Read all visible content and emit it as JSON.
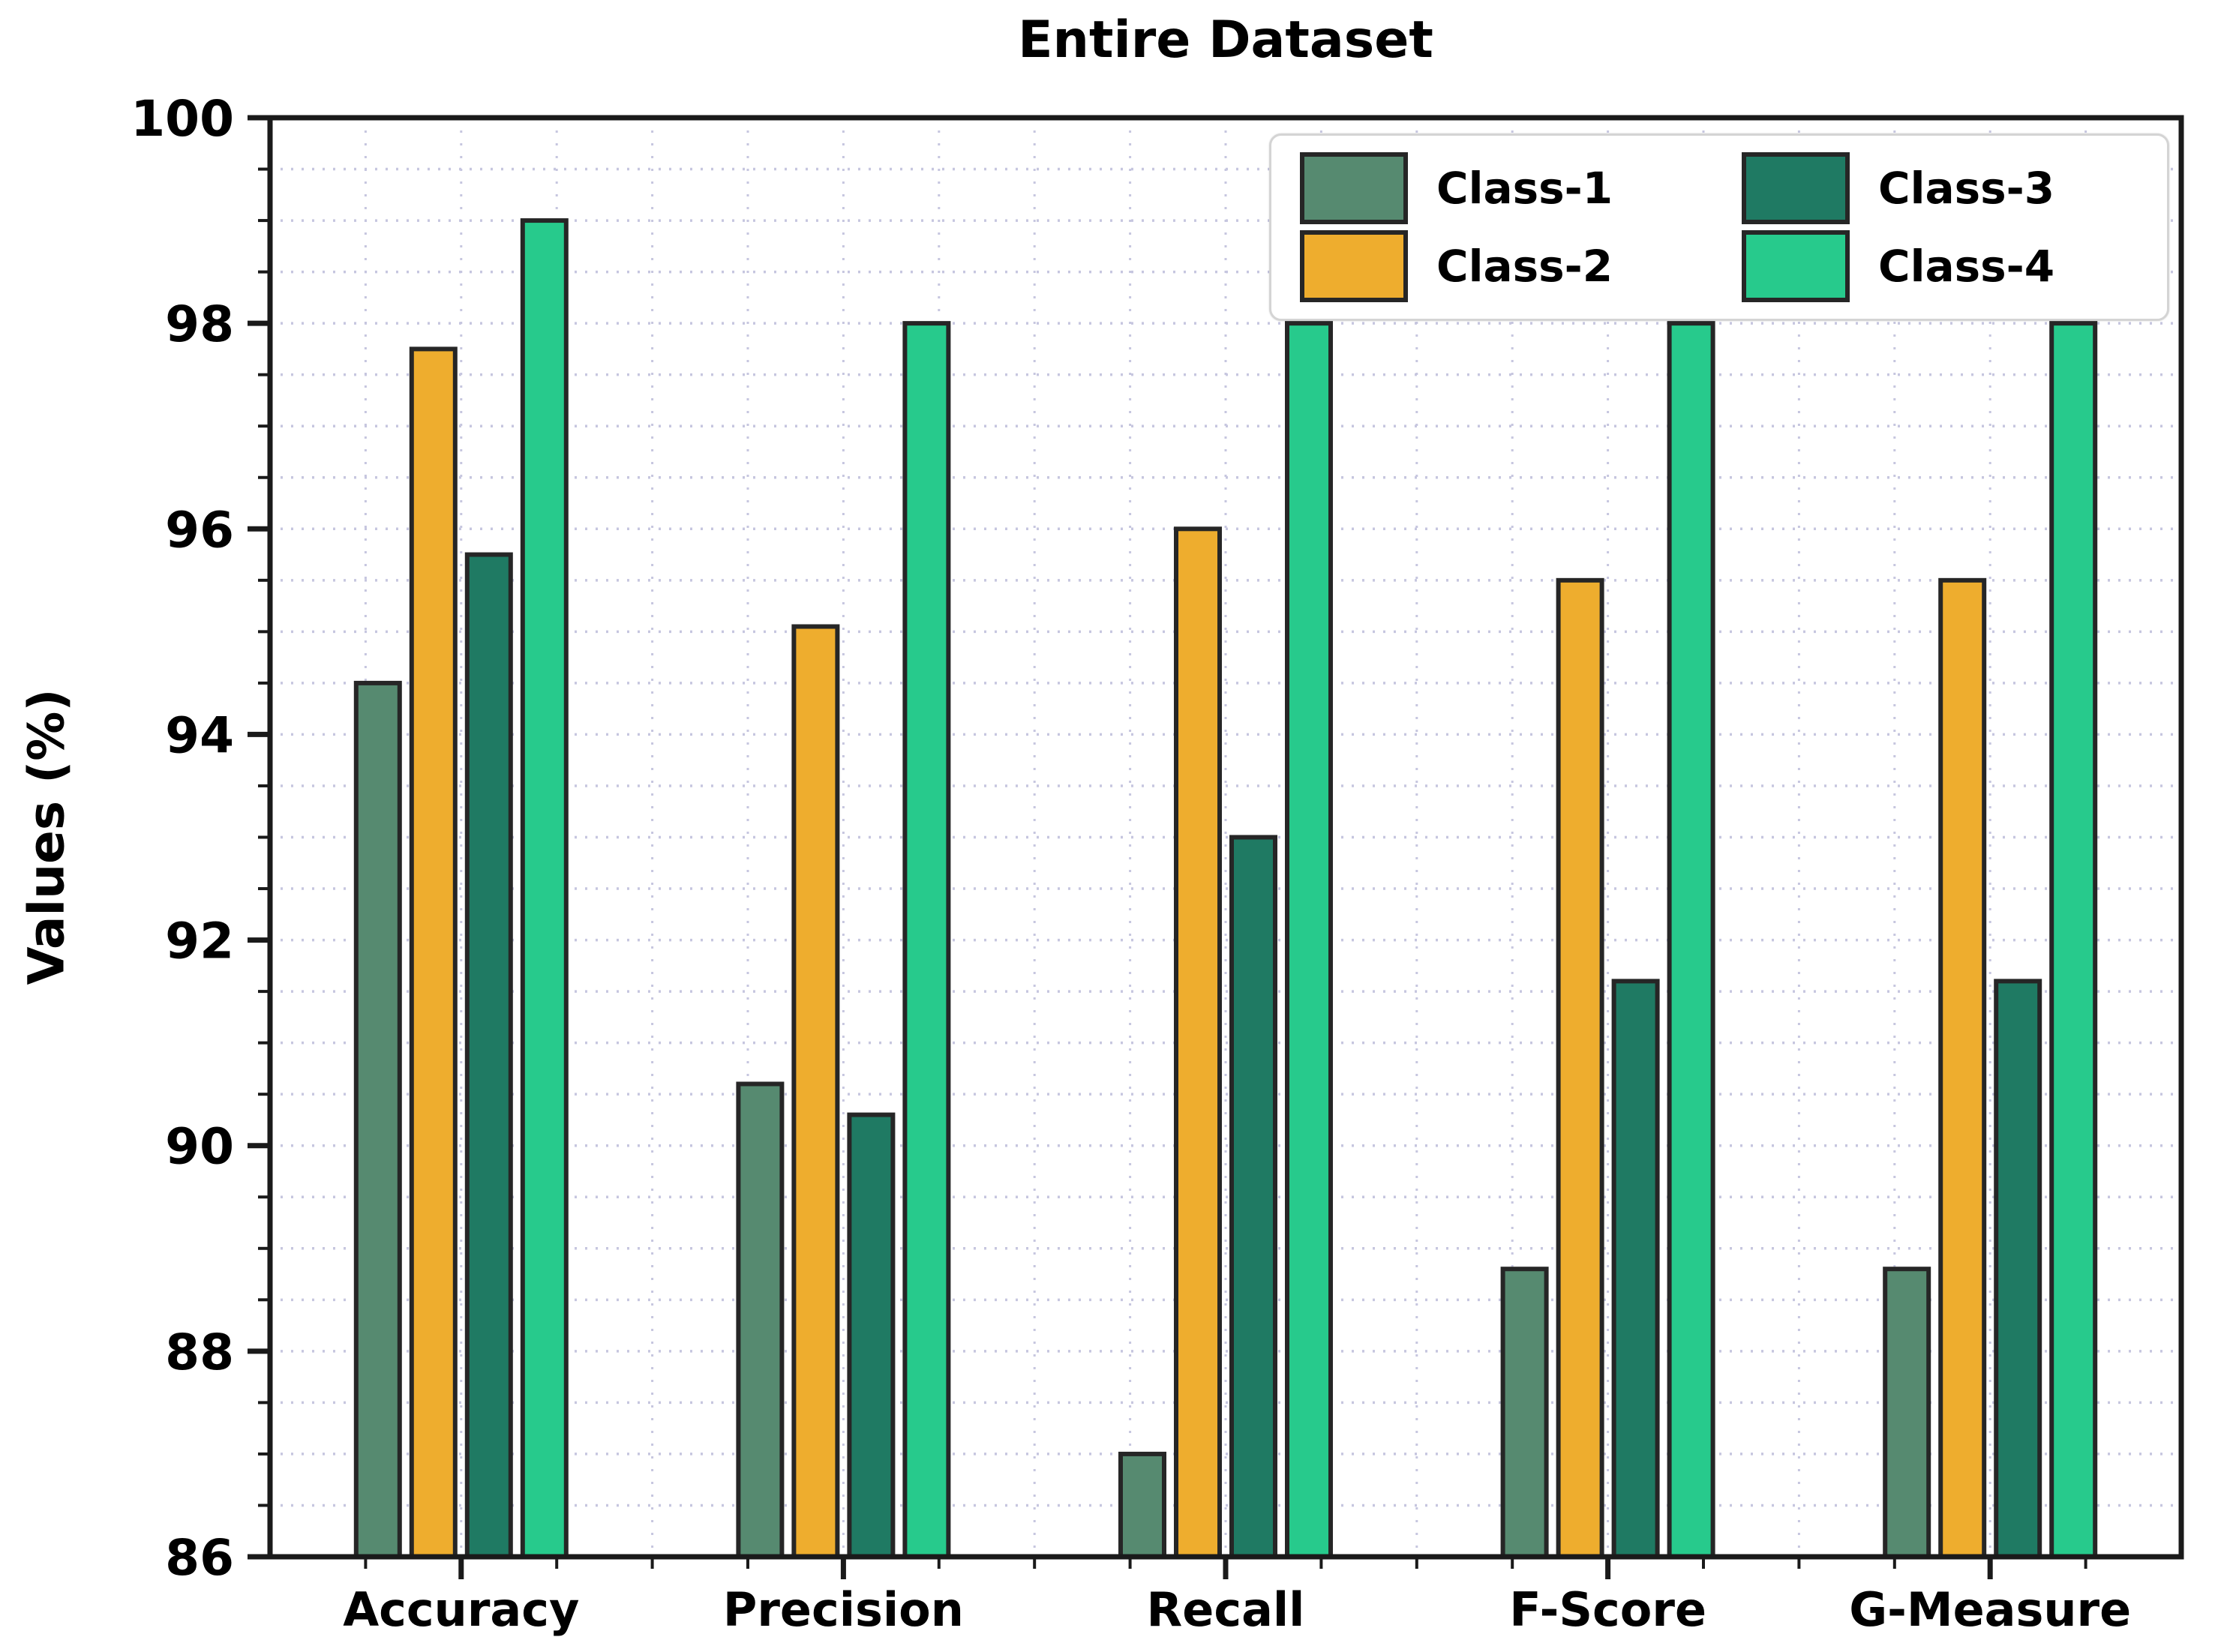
{
  "chart_data": {
    "type": "bar",
    "title": "Entire Dataset",
    "ylabel": "Values (%)",
    "xlabel": "",
    "categories": [
      "Accuracy",
      "Precision",
      "Recall",
      "F-Score",
      "G-Measure"
    ],
    "series": [
      {
        "name": "Class-1",
        "color": "#568a70",
        "values": [
          94.5,
          90.6,
          87.0,
          88.8,
          88.8
        ]
      },
      {
        "name": "Class-2",
        "color": "#eead2e",
        "values": [
          97.75,
          95.05,
          96.0,
          95.5,
          95.5
        ]
      },
      {
        "name": "Class-3",
        "color": "#1f7a63",
        "values": [
          95.75,
          90.3,
          93.0,
          91.6,
          91.6
        ]
      },
      {
        "name": "Class-4",
        "color": "#27ca8c",
        "values": [
          99.0,
          98.0,
          98.0,
          98.0,
          98.0
        ]
      }
    ],
    "ylim": [
      86,
      100
    ],
    "yticks": [
      86,
      88,
      90,
      92,
      94,
      96,
      98,
      100
    ],
    "grid": {
      "on": true,
      "minor_step": 0.5,
      "color": "#c6c6df",
      "style": "dotted"
    },
    "legend": {
      "position": "top-right",
      "columns": 2,
      "entries": [
        "Class-1",
        "Class-2",
        "Class-3",
        "Class-4"
      ]
    },
    "bar_edge_color": "#262626",
    "spine_color": "#1a1a1a",
    "background": "#ffffff"
  }
}
